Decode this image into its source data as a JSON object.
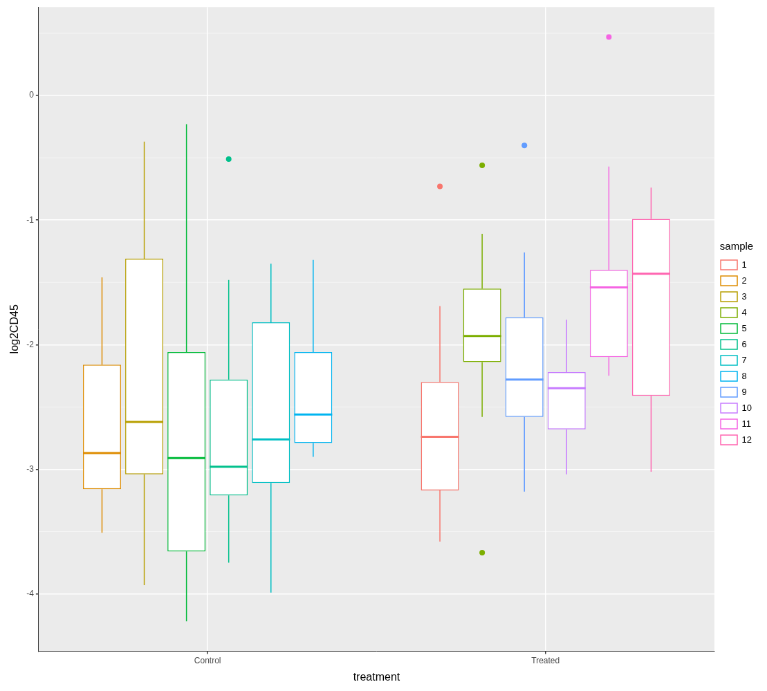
{
  "chart_data": {
    "type": "boxplot",
    "x_label": "treatment",
    "y_label": "log2CD45",
    "legend_title": "sample",
    "legend": "right",
    "grid": true,
    "categories": [
      "Control",
      "Treated"
    ],
    "ylim": [
      -4.46,
      0.71
    ],
    "yticks": [
      -4,
      -3,
      -2,
      -1,
      0
    ],
    "series": [
      {
        "name": "1",
        "color": "#F8766D",
        "group": "Treated",
        "min": -3.58,
        "q1": -3.17,
        "median": -2.74,
        "q3": -2.3,
        "max": -1.69,
        "outliers": [
          -0.73
        ]
      },
      {
        "name": "2",
        "color": "#DE8C00",
        "group": "Control",
        "min": -3.51,
        "q1": -3.16,
        "median": -2.87,
        "q3": -2.16,
        "max": -1.46,
        "outliers": []
      },
      {
        "name": "3",
        "color": "#B79F00",
        "group": "Control",
        "min": -3.93,
        "q1": -3.04,
        "median": -2.62,
        "q3": -1.31,
        "max": -0.37,
        "outliers": []
      },
      {
        "name": "4",
        "color": "#7CAE00",
        "group": "Treated",
        "min": -2.58,
        "q1": -2.14,
        "median": -1.93,
        "q3": -1.55,
        "max": -1.11,
        "outliers": [
          -0.56,
          -3.67
        ]
      },
      {
        "name": "5",
        "color": "#00BA38",
        "group": "Control",
        "min": -4.22,
        "q1": -3.66,
        "median": -2.91,
        "q3": -2.06,
        "max": -0.23,
        "outliers": []
      },
      {
        "name": "6",
        "color": "#00C08B",
        "group": "Control",
        "min": -3.75,
        "q1": -3.21,
        "median": -2.98,
        "q3": -2.28,
        "max": -1.48,
        "outliers": [
          -0.51
        ]
      },
      {
        "name": "7",
        "color": "#00BFC4",
        "group": "Control",
        "min": -3.99,
        "q1": -3.11,
        "median": -2.76,
        "q3": -1.82,
        "max": -1.35,
        "outliers": []
      },
      {
        "name": "8",
        "color": "#00B4F0",
        "group": "Control",
        "min": -2.9,
        "q1": -2.79,
        "median": -2.56,
        "q3": -2.06,
        "max": -1.32,
        "outliers": []
      },
      {
        "name": "9",
        "color": "#619CFF",
        "group": "Treated",
        "min": -3.18,
        "q1": -2.58,
        "median": -2.28,
        "q3": -1.78,
        "max": -1.26,
        "outliers": [
          -0.4
        ]
      },
      {
        "name": "10",
        "color": "#C77CFF",
        "group": "Treated",
        "min": -3.04,
        "q1": -2.68,
        "median": -2.35,
        "q3": -2.22,
        "max": -1.8,
        "outliers": []
      },
      {
        "name": "11",
        "color": "#F564E3",
        "group": "Treated",
        "min": -2.25,
        "q1": -2.1,
        "median": -1.54,
        "q3": -1.4,
        "max": -0.57,
        "outliers": [
          0.47
        ]
      },
      {
        "name": "12",
        "color": "#FF64B0",
        "group": "Treated",
        "min": -3.02,
        "q1": -2.41,
        "median": -1.43,
        "q3": -0.99,
        "max": -0.74,
        "outliers": []
      }
    ]
  }
}
